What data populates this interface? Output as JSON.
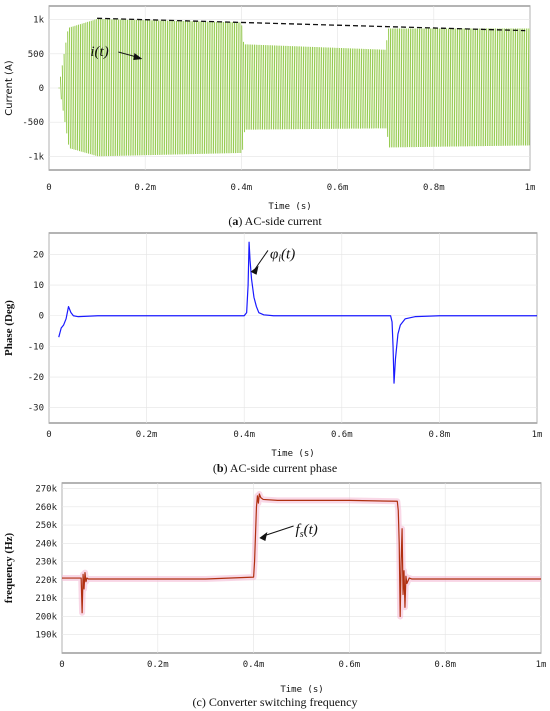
{
  "chart_data": [
    {
      "id": "a",
      "type": "line",
      "caption_label": "a",
      "caption_text": "AC-side current",
      "xlabel": "Time (s)",
      "ylabel": "Current (A)",
      "xlim": [
        0,
        0.001
      ],
      "ylim": [
        -1200,
        1200
      ],
      "xticks": [
        0,
        0.0002,
        0.0004,
        0.0006,
        0.0008,
        0.001
      ],
      "xtick_labels": [
        "0",
        "0.2m",
        "0.4m",
        "0.6m",
        "0.8m",
        "1m"
      ],
      "yticks": [
        1000,
        500,
        0,
        -500,
        -1000
      ],
      "ytick_labels": [
        "1k",
        "500",
        "0",
        "-500",
        "-1k"
      ],
      "annotation": {
        "text": "i(t)",
        "x": 0.00019,
        "y": 380
      },
      "series": [
        {
          "color": "#8cc63f",
          "kind": "envelope",
          "envelope": [
            [
              2e-05,
              0
            ],
            [
              4e-05,
              880
            ],
            [
              0.0001,
              1010
            ],
            [
              0.0004,
              960
            ],
            [
              0.000405,
              640
            ],
            [
              0.0007,
              560
            ],
            [
              0.000705,
              870
            ],
            [
              0.001,
              870
            ]
          ],
          "envelope_low": [
            [
              2e-05,
              0
            ],
            [
              4e-05,
              -880
            ],
            [
              0.0001,
              -1000
            ],
            [
              0.0004,
              -950
            ],
            [
              0.000405,
              -610
            ],
            [
              0.0007,
              -590
            ],
            [
              0.000705,
              -870
            ],
            [
              0.001,
              -840
            ]
          ]
        },
        {
          "color": "#111111",
          "kind": "dashed-trend",
          "x": [
            0.0001,
            0.00099
          ],
          "y": [
            1020,
            840
          ]
        }
      ]
    },
    {
      "id": "b",
      "type": "line",
      "caption_label": "b",
      "caption_text": "AC-side current phase",
      "xlabel": "Time (s)",
      "ylabel": "Phase (Deg)",
      "xlim": [
        0,
        0.001
      ],
      "ylim": [
        -35,
        27
      ],
      "xticks": [
        0,
        0.0002,
        0.0004,
        0.0006,
        0.0008,
        0.001
      ],
      "xtick_labels": [
        "0",
        "0.2m",
        "0.4m",
        "0.6m",
        "0.8m",
        "1m"
      ],
      "yticks": [
        20,
        10,
        0,
        -10,
        -20,
        -30
      ],
      "ytick_labels": [
        "20",
        "10",
        "0",
        "-10",
        "-20",
        "-30"
      ],
      "annotation": {
        "text": "φ",
        "sub": "i",
        "rest": "(t)",
        "x": 0.00042,
        "y": 20
      },
      "series": [
        {
          "color": "#1a1aff",
          "x": [
            2e-05,
            2.5e-05,
            3e-05,
            3.5e-05,
            4e-05,
            4.5e-05,
            5e-05,
            6e-05,
            0.0001,
            0.0002,
            0.0003,
            0.0004,
            0.000405,
            0.000408,
            0.00041,
            0.000412,
            0.000415,
            0.00042,
            0.000425,
            0.00043,
            0.00044,
            0.00046,
            0.0005,
            0.0006,
            0.0007,
            0.000703,
            0.000705,
            0.000707,
            0.00071,
            0.000715,
            0.00072,
            0.00073,
            0.00075,
            0.0008,
            0.0009,
            0.001
          ],
          "y": [
            -7,
            -4,
            -3,
            -1,
            3,
            1,
            0,
            -0.3,
            0,
            0,
            0,
            0,
            1,
            10,
            24,
            18,
            12,
            6,
            3,
            1,
            0.3,
            0,
            0,
            0,
            0,
            -2,
            -10,
            -22,
            -14,
            -6,
            -3,
            -1,
            -0.3,
            0,
            0,
            0
          ]
        }
      ]
    },
    {
      "id": "c",
      "type": "line",
      "caption_label": "c",
      "caption_text": "Converter switching frequency",
      "xlabel": "Time (s)",
      "ylabel": "frequency (Hz)",
      "xlim": [
        0,
        0.001
      ],
      "ylim": [
        180000,
        273000
      ],
      "xticks": [
        0,
        0.0002,
        0.0004,
        0.0006,
        0.0008,
        0.001
      ],
      "xtick_labels": [
        "0",
        "0.2m",
        "0.4m",
        "0.6m",
        "0.8m",
        "1m"
      ],
      "yticks": [
        270000,
        260000,
        250000,
        240000,
        230000,
        220000,
        210000,
        200000,
        190000
      ],
      "ytick_labels": [
        "270k",
        "260k",
        "250k",
        "240k",
        "230k",
        "220k",
        "210k",
        "200k",
        "190k"
      ],
      "annotation": {
        "text": "f",
        "sub": "s",
        "rest": "(t)",
        "x": 0.00045,
        "y": 244000
      },
      "series": [
        {
          "color": "#b03010",
          "glow": "#f4b8d4",
          "x": [
            0,
            4e-05,
            4.2e-05,
            4.4e-05,
            4.6e-05,
            4.8e-05,
            5e-05,
            5.2e-05,
            5.5e-05,
            0.0001,
            0.0002,
            0.0003,
            0.0004,
            0.000402,
            0.000404,
            0.000406,
            0.000408,
            0.00041,
            0.000412,
            0.000415,
            0.00042,
            0.00045,
            0.0005,
            0.0006,
            0.0007,
            0.000702,
            0.000704,
            0.000706,
            0.000708,
            0.00071,
            0.000712,
            0.000714,
            0.000716,
            0.000718,
            0.00072,
            0.000725,
            0.00073,
            0.0008,
            0.0009,
            0.001
          ],
          "y": [
            221000,
            221000,
            202000,
            223000,
            215000,
            224000,
            219000,
            221000,
            220500,
            220500,
            220500,
            220500,
            221500,
            230000,
            245000,
            260000,
            266000,
            262000,
            267000,
            265000,
            264000,
            263500,
            263500,
            263500,
            263000,
            258000,
            240000,
            200000,
            230000,
            248000,
            212000,
            225000,
            205000,
            222000,
            218000,
            221000,
            220500,
            220500,
            220500,
            220500
          ]
        }
      ]
    }
  ]
}
